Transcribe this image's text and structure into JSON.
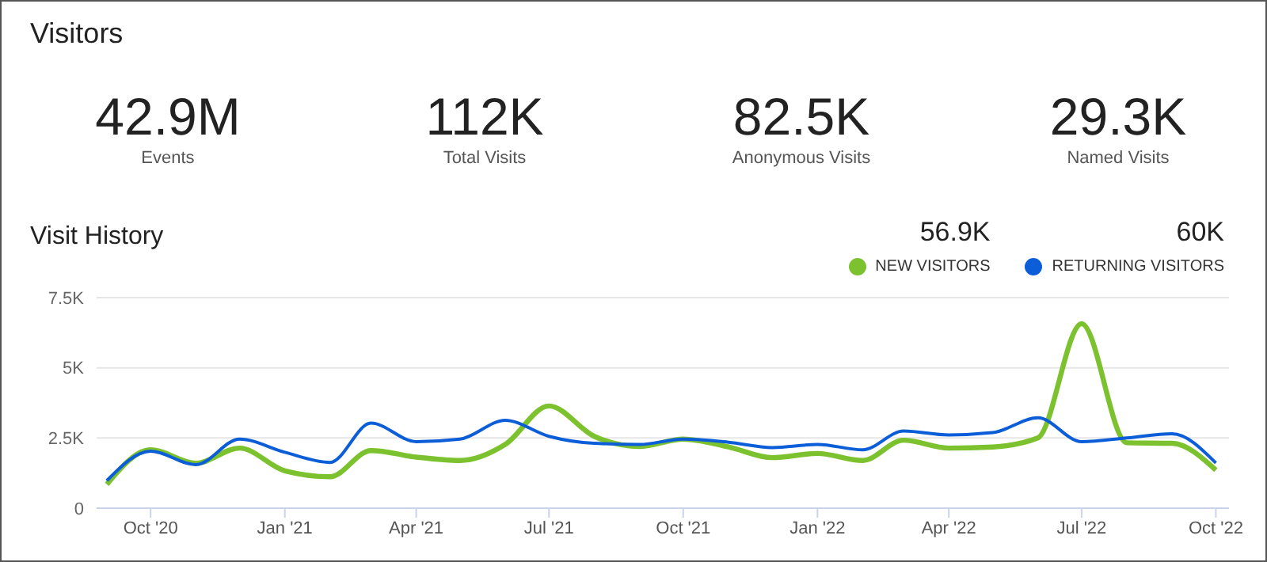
{
  "chart_data": [
    {
      "type": "other",
      "title": "Visitors",
      "annotations": [
        "42.9M",
        "Events",
        "112K",
        "Total Visits",
        "82.5K",
        "Anonymous Visits",
        "29.3K",
        "Named Visits"
      ]
    },
    {
      "type": "line",
      "title": "Visit History",
      "x": [
        "2020-09",
        "2020-10",
        "2020-11",
        "2020-12",
        "2021-01",
        "2021-02",
        "2021-03",
        "2021-04",
        "2021-05",
        "2021-06",
        "2021-07",
        "2021-08",
        "2021-09",
        "2021-10",
        "2021-11",
        "2021-12",
        "2022-01",
        "2022-02",
        "2022-03",
        "2022-04",
        "2022-05",
        "2022-06",
        "2022-07",
        "2022-08",
        "2022-09",
        "2022-10"
      ],
      "series": [
        {
          "name": "NEW VISITORS",
          "color": "#7cc22e",
          "values": [
            850,
            2080,
            1600,
            2140,
            1330,
            1120,
            2050,
            1820,
            1700,
            2270,
            3640,
            2560,
            2200,
            2460,
            2180,
            1800,
            1950,
            1700,
            2420,
            2140,
            2180,
            2500,
            6570,
            2330,
            2310,
            1360
          ]
        },
        {
          "name": "RETURNING VISITORS",
          "color": "#0b5ed8",
          "values": [
            980,
            2030,
            1550,
            2460,
            1990,
            1630,
            3030,
            2370,
            2460,
            3130,
            2560,
            2310,
            2270,
            2460,
            2350,
            2160,
            2270,
            2080,
            2750,
            2610,
            2690,
            3220,
            2370,
            2500,
            2650,
            1610
          ]
        }
      ],
      "totals": [
        "56.9K",
        "60K"
      ],
      "xlim": [
        "2020-08-25",
        "2022-10-10"
      ],
      "xticks": [
        {
          "value": "2020-10",
          "label": "Oct '20"
        },
        {
          "value": "2021-01",
          "label": "Jan '21"
        },
        {
          "value": "2021-04",
          "label": "Apr '21"
        },
        {
          "value": "2021-07",
          "label": "Jul '21"
        },
        {
          "value": "2021-10",
          "label": "Oct '21"
        },
        {
          "value": "2022-01",
          "label": "Jan '22"
        },
        {
          "value": "2022-04",
          "label": "Apr '22"
        },
        {
          "value": "2022-07",
          "label": "Jul '22"
        },
        {
          "value": "2022-10",
          "label": "Oct '22"
        }
      ],
      "ylim": [
        0,
        7500
      ],
      "yticks": [
        0,
        {
          "value": 2500,
          "label": "2.5K"
        },
        {
          "value": 5000,
          "label": "5K"
        },
        {
          "value": 7500,
          "label": "7.5K"
        }
      ],
      "grid": "y",
      "legend": "top right",
      "marker": "none",
      "line_style": "solid"
    }
  ]
}
